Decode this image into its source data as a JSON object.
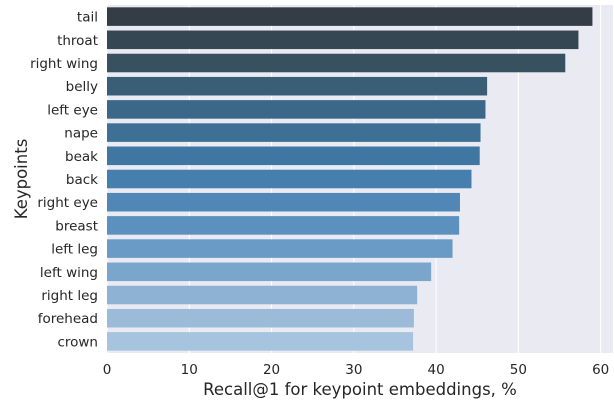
{
  "chart_data": {
    "type": "bar",
    "orientation": "horizontal",
    "categories": [
      "tail",
      "throat",
      "right wing",
      "belly",
      "left eye",
      "nape",
      "beak",
      "back",
      "right eye",
      "breast",
      "left leg",
      "left wing",
      "right leg",
      "forehead",
      "crown"
    ],
    "values": [
      59.0,
      57.3,
      55.7,
      46.2,
      46.0,
      45.4,
      45.3,
      44.3,
      42.9,
      42.8,
      42.0,
      39.4,
      37.7,
      37.3,
      37.2
    ],
    "title": "",
    "xlabel": "Recall@1 for keypoint embeddings, %",
    "ylabel": "Keypoints",
    "xlim": [
      0,
      61.5
    ],
    "xticks": [
      0,
      10,
      20,
      30,
      40,
      50,
      60
    ],
    "grid": true,
    "style": {
      "background": "#eaeaf2",
      "grid_color": "#ffffff",
      "palette": "Blues_d"
    },
    "bar_colors": [
      "#343d46",
      "#364754",
      "#385161",
      "#3a5e76",
      "#3b6888",
      "#3e7096",
      "#4077a2",
      "#467ead",
      "#5087b6",
      "#5c91bf",
      "#6a9bc6",
      "#7ba6cc",
      "#8db2d3",
      "#9bbbd9",
      "#a7c4df"
    ]
  }
}
